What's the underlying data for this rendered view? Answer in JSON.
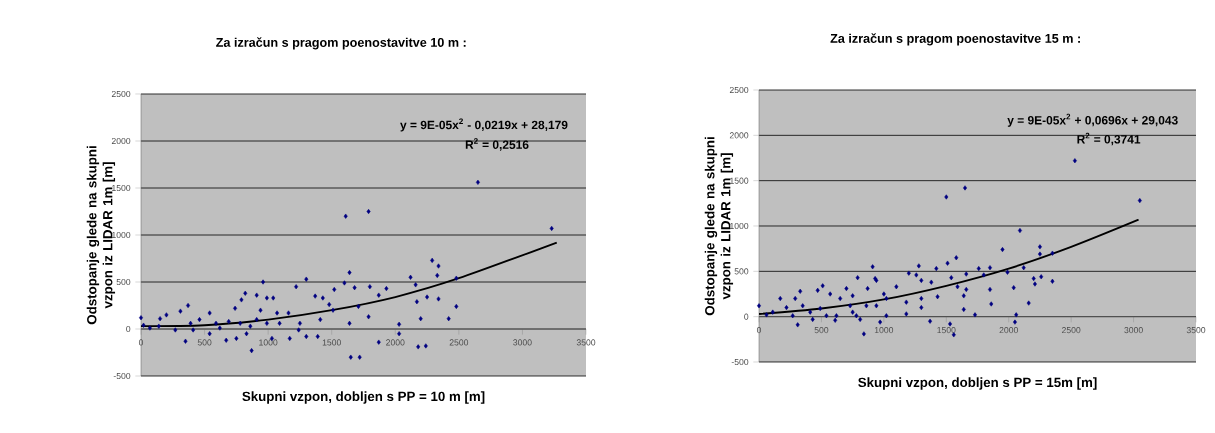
{
  "chart_data": [
    {
      "type": "scatter",
      "title": "Za izračun s pragom poenostavitve 10 m :",
      "xlabel": "Skupni vzpon, dobljen s PP = 10 m [m]",
      "ylabel": "Odstopanje glede na skupni vzpon iz LIDAR 1m [m]",
      "xlim": [
        0,
        3500
      ],
      "xticks": [
        0,
        500,
        1000,
        1500,
        2000,
        2500,
        3000,
        3500
      ],
      "ylim": [
        -500,
        2500
      ],
      "yticks": [
        -500,
        0,
        500,
        1000,
        1500,
        2000,
        2500
      ],
      "grid": "y",
      "annotations": [
        "y = 9E-05x$^{2}$ - 0,0219x + 28,179",
        "R$^{2}$ = 0,2516"
      ],
      "series": [
        {
          "color": "#000080",
          "marker": "diamond",
          "x": [
            0,
            1610,
            1790,
            2650,
            3230,
            2290,
            2340,
            2330,
            2480,
            2120,
            2160,
            2170,
            2250,
            2340,
            2200,
            2420,
            2480,
            2180,
            2240,
            2030,
            2030,
            1930,
            1870,
            1800,
            1790,
            1870,
            1650,
            1720,
            1640,
            1600,
            1680,
            1710,
            1640,
            1520,
            1480,
            1430,
            1370,
            1300,
            1220,
            1510,
            1410,
            1390,
            1300,
            1170,
            1160,
            1240,
            1040,
            990,
            960,
            910,
            870,
            820,
            790,
            740,
            690,
            670,
            750,
            830,
            590,
            540,
            460,
            370,
            310,
            350,
            200,
            150,
            70,
            270,
            410,
            540,
            780,
            910,
            990,
            1030,
            1090,
            860,
            940,
            1070,
            620,
            390,
            140,
            20,
            1250
          ],
          "values": [
            120,
            1200,
            1250,
            1560,
            1070,
            730,
            670,
            570,
            540,
            550,
            470,
            290,
            340,
            320,
            110,
            110,
            240,
            -190,
            -180,
            -50,
            50,
            430,
            360,
            450,
            130,
            -140,
            -300,
            -300,
            600,
            490,
            440,
            240,
            60,
            420,
            260,
            330,
            350,
            530,
            450,
            200,
            100,
            -80,
            -80,
            -100,
            170,
            -10,
            330,
            330,
            500,
            360,
            -230,
            380,
            310,
            220,
            80,
            -120,
            -100,
            -50,
            60,
            170,
            100,
            250,
            190,
            -130,
            150,
            110,
            10,
            -10,
            -10,
            -50,
            60,
            100,
            60,
            -100,
            60,
            30,
            200,
            170,
            10,
            60,
            30,
            40,
            60
          ]
        },
        {
          "type": "line",
          "color": "#000000",
          "marker": "none",
          "x": [
            0,
            500,
            1000,
            1500,
            2000,
            2500,
            3270
          ],
          "values": [
            30,
            40,
            100,
            200,
            340,
            540,
            920
          ]
        }
      ]
    },
    {
      "type": "scatter",
      "title": "Za izračun s pragom poenostavitve 15 m :",
      "xlabel": "Skupni vzpon, dobljen s PP = 15m [m]",
      "ylabel": "Odstopanje glede na skupni vzpon iz LIDAR 1m [m]",
      "xlim": [
        0,
        3500
      ],
      "xticks": [
        0,
        500,
        1000,
        1500,
        2000,
        2500,
        3000,
        3500
      ],
      "ylim": [
        -500,
        2500
      ],
      "yticks": [
        -500,
        0,
        500,
        1000,
        1500,
        2000,
        2500
      ],
      "grid": "y",
      "annotations": [
        "y = 9E-05x$^{2}$ + 0,0696x + 29,043",
        "R$^{2}$ = 0,3741"
      ],
      "series": [
        {
          "color": "#000080",
          "marker": "diamond",
          "x": [
            0,
            2530,
            3050,
            1500,
            1650,
            2090,
            1950,
            2250,
            2250,
            2350,
            2120,
            1990,
            2200,
            2210,
            2260,
            2350,
            2040,
            2160,
            2060,
            2050,
            1730,
            1850,
            1860,
            1850,
            1760,
            1800,
            1660,
            1660,
            1640,
            1640,
            1580,
            1510,
            1540,
            1590,
            1530,
            1560,
            1370,
            1420,
            1380,
            1430,
            1280,
            1200,
            1260,
            1300,
            1300,
            1300,
            1180,
            1180,
            1100,
            1020,
            970,
            1000,
            910,
            930,
            940,
            870,
            790,
            840,
            810,
            750,
            700,
            650,
            610,
            570,
            510,
            470,
            430,
            330,
            310,
            290,
            220,
            170,
            110,
            60,
            350,
            490,
            730,
            860,
            940,
            620,
            750,
            410,
            540,
            270,
            780,
            1020
          ],
          "values": [
            120,
            1720,
            1280,
            1320,
            1420,
            950,
            740,
            770,
            690,
            700,
            540,
            490,
            420,
            360,
            440,
            390,
            320,
            150,
            20,
            -60,
            20,
            300,
            140,
            540,
            530,
            460,
            470,
            300,
            230,
            80,
            650,
            590,
            430,
            330,
            -80,
            -200,
            -50,
            530,
            380,
            220,
            560,
            480,
            460,
            400,
            200,
            100,
            160,
            30,
            330,
            10,
            -60,
            250,
            550,
            420,
            400,
            310,
            430,
            -190,
            -30,
            230,
            310,
            200,
            -40,
            250,
            340,
            290,
            -30,
            280,
            -90,
            200,
            100,
            200,
            50,
            20,
            120,
            90,
            120,
            120,
            120,
            10,
            50,
            50,
            10,
            10,
            10,
            200
          ]
        },
        {
          "type": "line",
          "color": "#000000",
          "marker": "none",
          "x": [
            0,
            500,
            1000,
            1500,
            2000,
            2500,
            3040
          ],
          "values": [
            30,
            90,
            190,
            340,
            530,
            770,
            1070
          ]
        }
      ]
    }
  ]
}
